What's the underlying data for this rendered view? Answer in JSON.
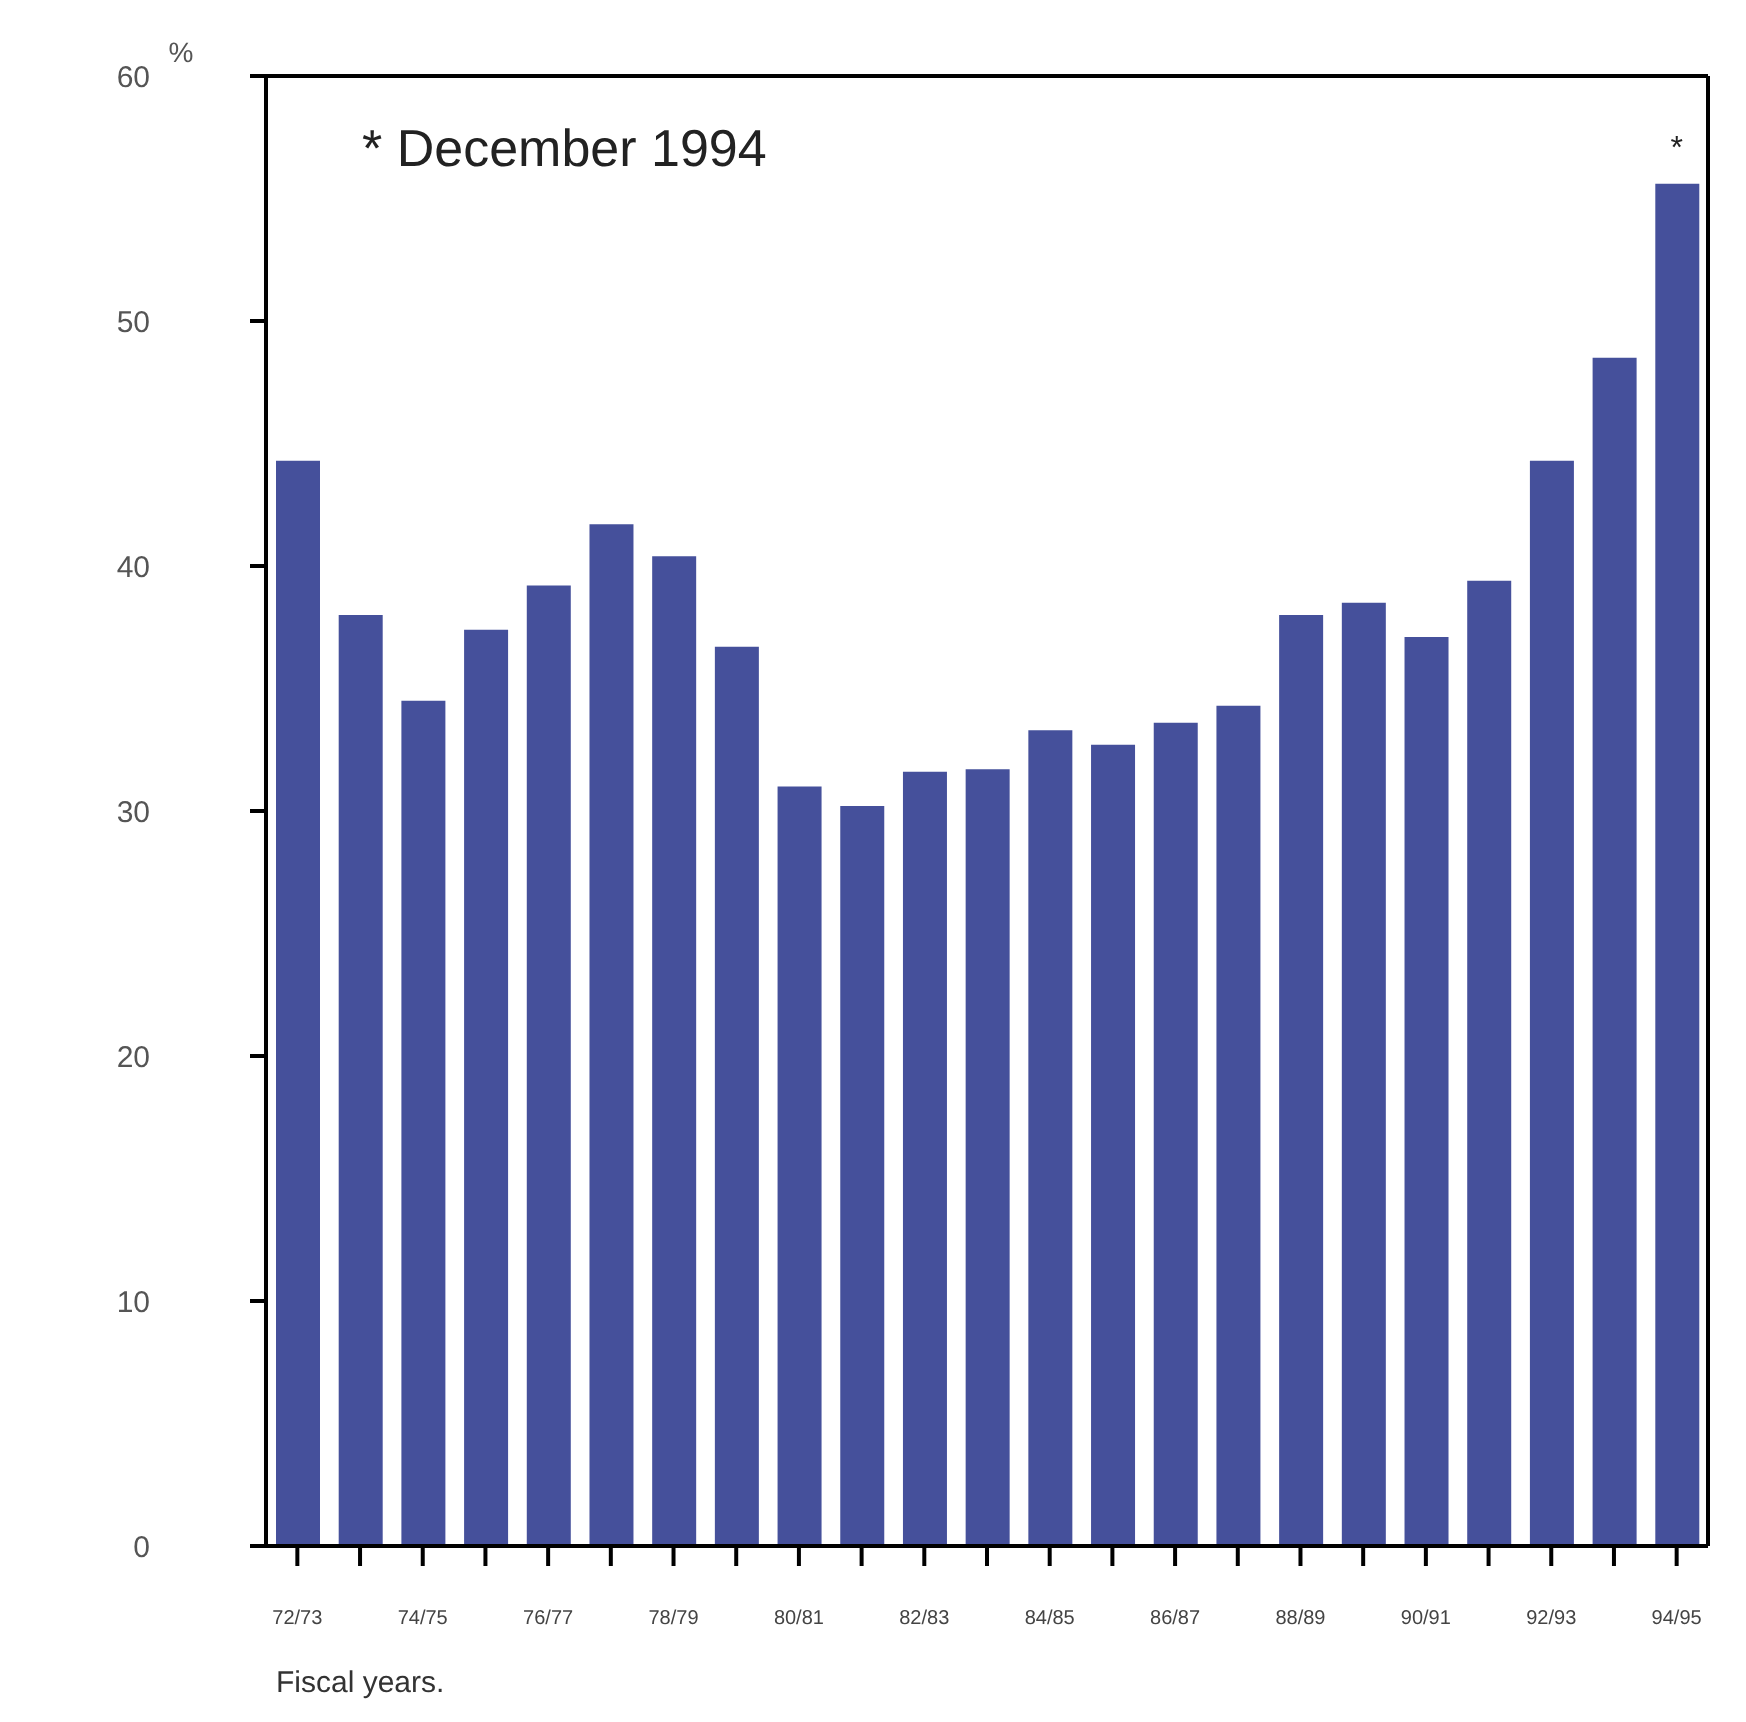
{
  "chart_data": {
    "type": "bar",
    "ylabel": "%",
    "xlabel": "Fiscal years.",
    "categories": [
      "72/73",
      null,
      "74/75",
      null,
      "76/77",
      null,
      "78/79",
      null,
      "80/81",
      null,
      "82/83",
      null,
      "84/85",
      null,
      "86/87",
      null,
      "88/89",
      null,
      "90/91",
      null,
      "92/93",
      null,
      "94/95"
    ],
    "values": [
      44.3,
      38.0,
      34.5,
      37.4,
      39.2,
      41.7,
      40.4,
      36.7,
      31.0,
      30.2,
      31.6,
      31.7,
      33.3,
      32.7,
      33.6,
      34.3,
      38.0,
      38.5,
      37.1,
      39.4,
      44.3,
      48.5,
      55.6
    ],
    "color": "#45509b",
    "ylim": [
      0,
      60
    ],
    "yticks": [
      0,
      10,
      20,
      30,
      40,
      50,
      60
    ],
    "grid": false,
    "legend": false,
    "annotations": [
      "* December 1994",
      {
        "text": "*",
        "x": "94/95",
        "y": 55.6
      }
    ]
  }
}
